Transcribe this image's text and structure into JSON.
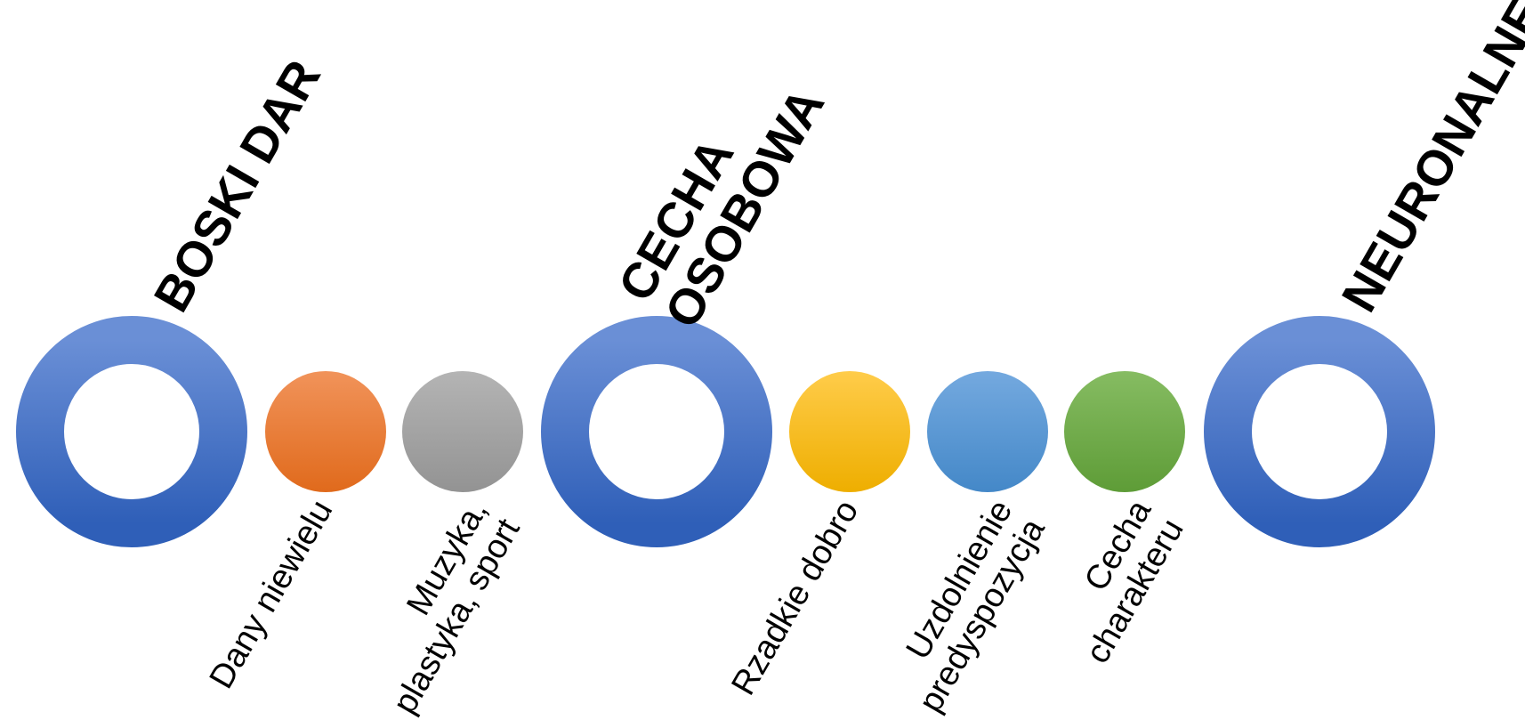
{
  "colors": {
    "ring": "#4472c4",
    "ring_light": "#6a8fd6",
    "orange": "#ed7d31",
    "gray": "#a5a5a5",
    "yellow": "#ffc000",
    "blue": "#5b9bd5",
    "green": "#70ad47"
  },
  "groups": [
    {
      "title": "BOSKI DAR",
      "items": [
        {
          "color": "orange",
          "label": [
            "Dany niewielu"
          ]
        },
        {
          "color": "gray",
          "label": [
            "Muzyka,",
            "plastyka, sport"
          ]
        }
      ]
    },
    {
      "title_lines": [
        "CECHA",
        "OSOBOWA"
      ],
      "items": [
        {
          "color": "yellow",
          "label": [
            "Rzadkie dobro"
          ]
        },
        {
          "color": "blue",
          "label": [
            "Uzdolnienie",
            "predyspozycja"
          ]
        },
        {
          "color": "green",
          "label": [
            "Cecha",
            "charakteru"
          ]
        }
      ]
    },
    {
      "title": "NEURONALNE",
      "items": []
    }
  ]
}
